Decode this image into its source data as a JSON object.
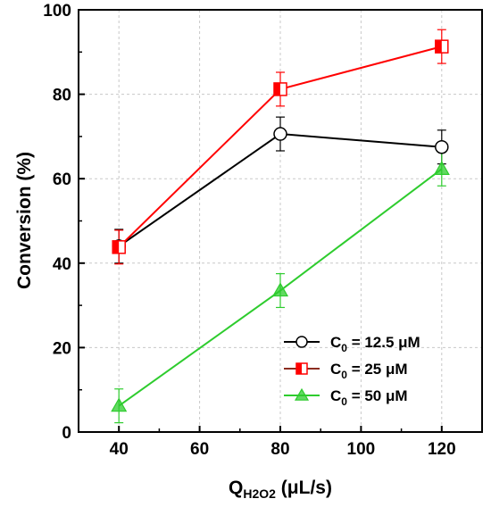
{
  "chart_data": {
    "type": "line",
    "xlabel": {
      "main": "Q",
      "sub": "H2O2",
      "unit": " (μL/s)"
    },
    "ylabel": "Conversion (%)",
    "xlim": [
      30,
      130
    ],
    "ylim": [
      0,
      100
    ],
    "x_ticks": [
      40,
      60,
      80,
      100,
      120
    ],
    "y_ticks": [
      0,
      20,
      40,
      60,
      80,
      100
    ],
    "grid": true,
    "legend_position": "bottom-right",
    "x": [
      40,
      80,
      120
    ],
    "series": [
      {
        "name": "C0 = 12.5 μM",
        "legend": {
          "main": "C",
          "sub": "0",
          "rest": " = 12.5 μM"
        },
        "marker": "circle",
        "color": "#000000",
        "marker_fill": "#ffffff",
        "values": [
          44,
          70.6,
          67.5
        ],
        "errors": [
          4,
          4,
          4
        ]
      },
      {
        "name": "C0 = 25 μM",
        "legend": {
          "main": "C",
          "sub": "0",
          "rest": " = 25 μM"
        },
        "marker": "square",
        "color": "#ff0000",
        "legend_line_color": "#8b2d1f",
        "values": [
          43.8,
          81.2,
          91.3
        ],
        "errors": [
          4,
          4,
          4
        ]
      },
      {
        "name": "C0 = 50 μM",
        "legend": {
          "main": "C",
          "sub": "0",
          "rest": " = 50 μM"
        },
        "marker": "triangle",
        "color": "#2ecc2e",
        "values": [
          6.2,
          33.5,
          62.3
        ],
        "errors": [
          4,
          4,
          4
        ]
      }
    ]
  }
}
